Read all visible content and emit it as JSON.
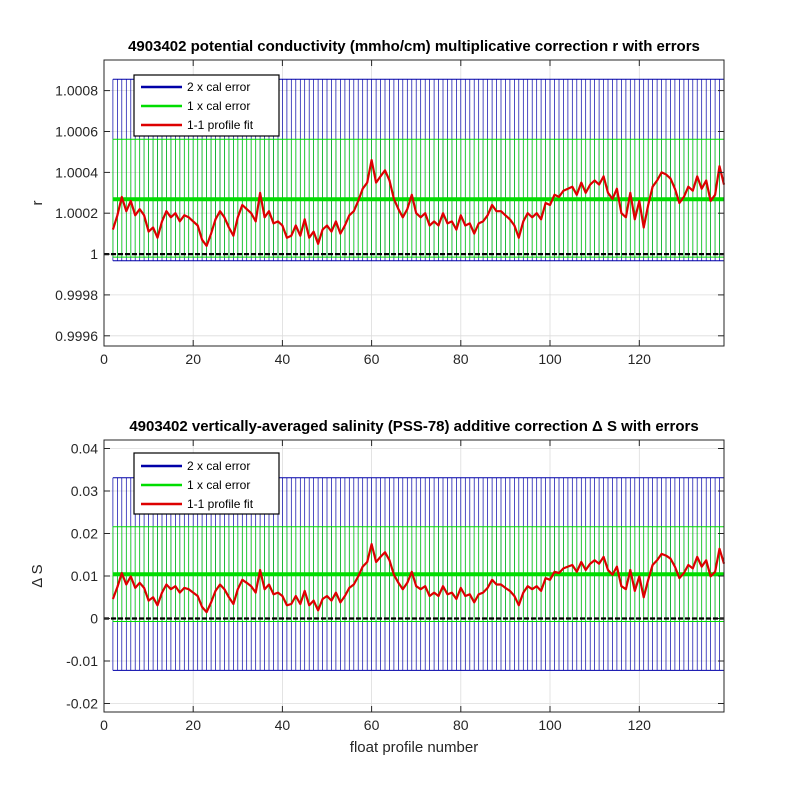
{
  "chart_data": [
    {
      "type": "line",
      "title": "4903402 potential conductivity (mmho/cm) multiplicative correction r with errors",
      "xlabel": "",
      "ylabel": "r",
      "xlim": [
        0,
        139
      ],
      "ylim": [
        0.99955,
        1.00095
      ],
      "xticks": [
        0,
        20,
        40,
        60,
        80,
        100,
        120
      ],
      "xtick_labels": [
        "0",
        "20",
        "40",
        "60",
        "80",
        "100",
        "120"
      ],
      "yticks": [
        0.9996,
        0.9998,
        1.0,
        1.0002,
        1.0004,
        1.0006,
        1.0008
      ],
      "ytick_labels": [
        "0.9996",
        "0.9998",
        "1",
        "1.0002",
        "1.0004",
        "1.0006",
        "1.0008"
      ],
      "grid": true,
      "legend_position": "top-left",
      "reference_line": 1.0,
      "series": [
        {
          "name": "2 x cal error",
          "color": "#0000a8",
          "kind": "error-band",
          "center": 1.000268,
          "low": 0.999967,
          "high": 1.000856
        },
        {
          "name": "1 x cal error",
          "color": "#00dd00",
          "kind": "error-band",
          "center": 1.000268,
          "low": 0.999985,
          "high": 1.000562
        },
        {
          "name": "1-1 profile fit",
          "color": "#dd0000",
          "kind": "line",
          "x": [
            2,
            3,
            4,
            5,
            6,
            7,
            8,
            9,
            10,
            11,
            12,
            13,
            14,
            15,
            16,
            17,
            18,
            19,
            20,
            21,
            22,
            23,
            24,
            25,
            26,
            27,
            28,
            29,
            30,
            31,
            32,
            33,
            34,
            35,
            36,
            37,
            38,
            39,
            40,
            41,
            42,
            43,
            44,
            45,
            46,
            47,
            48,
            49,
            50,
            51,
            52,
            53,
            54,
            55,
            56,
            57,
            58,
            59,
            60,
            61,
            62,
            63,
            64,
            65,
            66,
            67,
            68,
            69,
            70,
            71,
            72,
            73,
            74,
            75,
            76,
            77,
            78,
            79,
            80,
            81,
            82,
            83,
            84,
            85,
            86,
            87,
            88,
            89,
            90,
            91,
            92,
            93,
            94,
            95,
            96,
            97,
            98,
            99,
            100,
            101,
            102,
            103,
            104,
            105,
            106,
            107,
            108,
            109,
            110,
            111,
            112,
            113,
            114,
            115,
            116,
            117,
            118,
            119,
            120,
            121,
            122,
            123,
            124,
            125,
            126,
            127,
            128,
            129,
            130,
            131,
            132,
            133,
            134,
            135,
            136,
            137,
            138,
            139
          ],
          "y": [
            1.00012,
            1.00019,
            1.00028,
            1.00021,
            1.00026,
            1.00019,
            1.00022,
            1.00019,
            1.00011,
            1.00013,
            1.00008,
            1.00016,
            1.00021,
            1.00018,
            1.0002,
            1.00016,
            1.00019,
            1.00018,
            1.00016,
            1.00014,
            1.00007,
            1.00004,
            1.0001,
            1.00017,
            1.00021,
            1.00018,
            1.00013,
            1.00009,
            1.00018,
            1.00024,
            1.00022,
            1.0002,
            1.00016,
            1.0003,
            1.00018,
            1.00021,
            1.00015,
            1.00016,
            1.00014,
            1.00008,
            1.00009,
            1.00014,
            1.00009,
            1.00017,
            1.00008,
            1.00011,
            1.00005,
            1.00012,
            1.00014,
            1.00011,
            1.00016,
            1.0001,
            1.00014,
            1.00019,
            1.00021,
            1.00026,
            1.00032,
            1.00035,
            1.00046,
            1.00035,
            1.00038,
            1.00041,
            1.00036,
            1.00027,
            1.00022,
            1.00018,
            1.00022,
            1.00029,
            1.0002,
            1.00018,
            1.0002,
            1.00014,
            1.00016,
            1.00014,
            1.0002,
            1.00015,
            1.00016,
            1.00012,
            1.00019,
            1.00014,
            1.00015,
            1.0001,
            1.00015,
            1.00016,
            1.00019,
            1.00024,
            1.00021,
            1.00021,
            1.00019,
            1.00017,
            1.00014,
            1.00008,
            1.00016,
            1.0002,
            1.00018,
            1.0002,
            1.00017,
            1.00025,
            1.00024,
            1.00029,
            1.00028,
            1.00031,
            1.00032,
            1.00033,
            1.00029,
            1.00035,
            1.0003,
            1.00034,
            1.00036,
            1.00034,
            1.00038,
            1.0003,
            1.00027,
            1.00032,
            1.0002,
            1.00018,
            1.0003,
            1.00017,
            1.00026,
            1.00013,
            1.00024,
            1.00033,
            1.00036,
            1.0004,
            1.00039,
            1.00037,
            1.00032,
            1.00025,
            1.00028,
            1.00033,
            1.00031,
            1.00038,
            1.00032,
            1.00036,
            1.00026,
            1.00029,
            1.00043,
            1.00034
          ]
        }
      ]
    },
    {
      "type": "line",
      "title": "4903402 vertically-averaged salinity (PSS-78) additive correction Δ S with errors",
      "xlabel": "float profile number",
      "ylabel": "Δ S",
      "xlim": [
        0,
        139
      ],
      "ylim": [
        -0.022,
        0.042
      ],
      "xticks": [
        0,
        20,
        40,
        60,
        80,
        100,
        120
      ],
      "xtick_labels": [
        "0",
        "20",
        "40",
        "60",
        "80",
        "100",
        "120"
      ],
      "yticks": [
        -0.02,
        -0.01,
        0,
        0.01,
        0.02,
        0.03,
        0.04
      ],
      "ytick_labels": [
        "-0.02",
        "-0.01",
        "0",
        "0.01",
        "0.02",
        "0.03",
        "0.04"
      ],
      "grid": true,
      "legend_position": "top-left",
      "reference_line": 0,
      "series": [
        {
          "name": "2 x cal error",
          "color": "#0000a8",
          "kind": "error-band",
          "center": 0.0104,
          "low": -0.0122,
          "high": 0.0331
        },
        {
          "name": "1 x cal error",
          "color": "#00dd00",
          "kind": "error-band",
          "center": 0.0104,
          "low": -0.0007,
          "high": 0.0216
        },
        {
          "name": "1-1 profile fit",
          "color": "#dd0000",
          "kind": "line",
          "x": [
            2,
            3,
            4,
            5,
            6,
            7,
            8,
            9,
            10,
            11,
            12,
            13,
            14,
            15,
            16,
            17,
            18,
            19,
            20,
            21,
            22,
            23,
            24,
            25,
            26,
            27,
            28,
            29,
            30,
            31,
            32,
            33,
            34,
            35,
            36,
            37,
            38,
            39,
            40,
            41,
            42,
            43,
            44,
            45,
            46,
            47,
            48,
            49,
            50,
            51,
            52,
            53,
            54,
            55,
            56,
            57,
            58,
            59,
            60,
            61,
            62,
            63,
            64,
            65,
            66,
            67,
            68,
            69,
            70,
            71,
            72,
            73,
            74,
            75,
            76,
            77,
            78,
            79,
            80,
            81,
            82,
            83,
            84,
            85,
            86,
            87,
            88,
            89,
            90,
            91,
            92,
            93,
            94,
            95,
            96,
            97,
            98,
            99,
            100,
            101,
            102,
            103,
            104,
            105,
            106,
            107,
            108,
            109,
            110,
            111,
            112,
            113,
            114,
            115,
            116,
            117,
            118,
            119,
            120,
            121,
            122,
            123,
            124,
            125,
            126,
            127,
            128,
            129,
            130,
            131,
            132,
            133,
            134,
            135,
            136,
            137,
            138,
            139
          ],
          "y": [
            0.0046,
            0.0074,
            0.0107,
            0.008,
            0.0099,
            0.0072,
            0.0084,
            0.0072,
            0.0042,
            0.005,
            0.0031,
            0.0061,
            0.008,
            0.0069,
            0.0076,
            0.0061,
            0.0072,
            0.0069,
            0.0061,
            0.0053,
            0.0027,
            0.0015,
            0.0038,
            0.0065,
            0.008,
            0.0069,
            0.005,
            0.0034,
            0.0069,
            0.0091,
            0.0084,
            0.0076,
            0.0061,
            0.0114,
            0.0069,
            0.008,
            0.0057,
            0.0061,
            0.0053,
            0.0031,
            0.0034,
            0.0053,
            0.0034,
            0.0065,
            0.0031,
            0.0042,
            0.0019,
            0.0046,
            0.0053,
            0.0042,
            0.0061,
            0.0038,
            0.0053,
            0.0072,
            0.008,
            0.0099,
            0.0122,
            0.0133,
            0.0175,
            0.0133,
            0.0145,
            0.0156,
            0.0137,
            0.0103,
            0.0084,
            0.0069,
            0.0084,
            0.011,
            0.0076,
            0.0069,
            0.0076,
            0.0053,
            0.0061,
            0.0053,
            0.0076,
            0.0057,
            0.0061,
            0.0046,
            0.0072,
            0.0053,
            0.0057,
            0.0038,
            0.0057,
            0.0061,
            0.0072,
            0.0091,
            0.008,
            0.008,
            0.0072,
            0.0065,
            0.0053,
            0.0031,
            0.0061,
            0.0076,
            0.0069,
            0.0076,
            0.0065,
            0.0095,
            0.0091,
            0.011,
            0.0107,
            0.0118,
            0.0122,
            0.0126,
            0.011,
            0.0133,
            0.0114,
            0.0129,
            0.0137,
            0.0129,
            0.0145,
            0.0114,
            0.0103,
            0.0122,
            0.0076,
            0.0069,
            0.0114,
            0.0065,
            0.0099,
            0.005,
            0.0091,
            0.0126,
            0.0137,
            0.0152,
            0.0148,
            0.0141,
            0.0122,
            0.0095,
            0.0107,
            0.0126,
            0.0118,
            0.0145,
            0.0122,
            0.0137,
            0.0099,
            0.011,
            0.0164,
            0.0129
          ]
        }
      ]
    }
  ]
}
